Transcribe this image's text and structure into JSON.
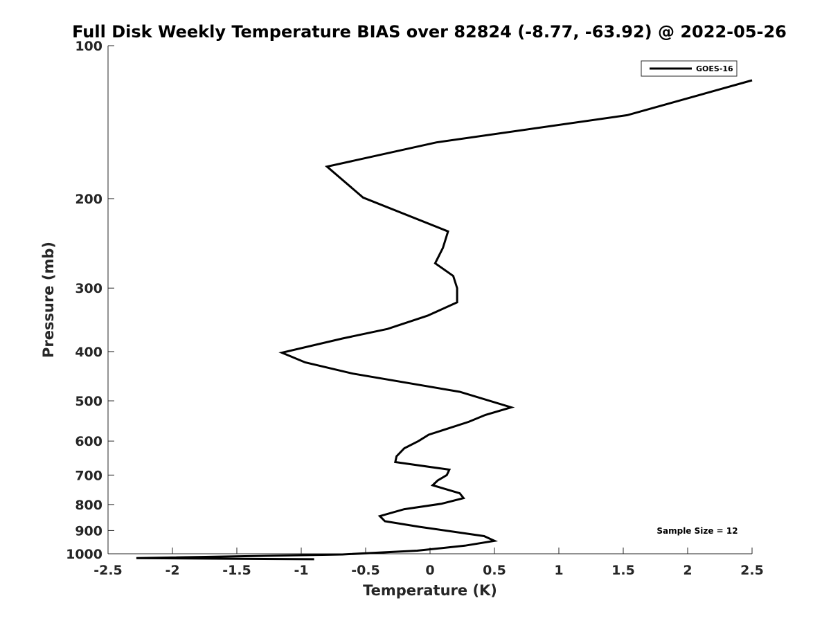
{
  "chart_data": {
    "type": "line",
    "title": "Full Disk Weekly Temperature BIAS over 82824 (-8.77, -63.92) @ 2022-05-26",
    "xlabel": "Temperature (K)",
    "ylabel": "Pressure (mb)",
    "xlim": [
      -2.5,
      2.5
    ],
    "ylim": [
      100,
      1000
    ],
    "y_scale": "log",
    "y_reversed": true,
    "x_ticks": [
      -2.5,
      -2,
      -1.5,
      -1,
      -0.5,
      0,
      0.5,
      1,
      1.5,
      2,
      2.5
    ],
    "x_tick_labels": [
      "-2.5",
      "-2",
      "-1.5",
      "-1",
      "-0.5",
      "0",
      "0.5",
      "1",
      "1.5",
      "2",
      "2.5"
    ],
    "y_ticks": [
      100,
      200,
      300,
      400,
      500,
      600,
      700,
      800,
      900,
      1000
    ],
    "y_tick_labels": [
      "100",
      "200",
      "300",
      "400",
      "500",
      "600",
      "700",
      "800",
      "900",
      "1000"
    ],
    "grid": false,
    "legend_position": "top-right",
    "annotation": "Sample Size = 12",
    "series": [
      {
        "name": "GOES-16",
        "color": "#000000",
        "points": [
          [
            2.5,
            117
          ],
          [
            1.53,
            137
          ],
          [
            0.05,
            155
          ],
          [
            -0.8,
            173
          ],
          [
            -0.52,
            199
          ],
          [
            0.14,
            232
          ],
          [
            0.1,
            250
          ],
          [
            0.04,
            268
          ],
          [
            0.18,
            284
          ],
          [
            0.21,
            300
          ],
          [
            0.21,
            320
          ],
          [
            -0.02,
            340
          ],
          [
            -0.33,
            361
          ],
          [
            -0.68,
            377
          ],
          [
            -1.15,
            402
          ],
          [
            -0.97,
            420
          ],
          [
            -0.6,
            442
          ],
          [
            0.23,
            480
          ],
          [
            0.63,
            515
          ],
          [
            0.43,
            533
          ],
          [
            0.3,
            550
          ],
          [
            -0.01,
            583
          ],
          [
            -0.09,
            600
          ],
          [
            -0.2,
            620
          ],
          [
            -0.26,
            643
          ],
          [
            -0.27,
            660
          ],
          [
            0.15,
            683
          ],
          [
            0.13,
            700
          ],
          [
            0.06,
            717
          ],
          [
            0.02,
            733
          ],
          [
            0.23,
            760
          ],
          [
            0.26,
            777
          ],
          [
            0.09,
            797
          ],
          [
            -0.2,
            817
          ],
          [
            -0.39,
            843
          ],
          [
            -0.35,
            863
          ],
          [
            -0.08,
            885
          ],
          [
            0.42,
            923
          ],
          [
            0.5,
            943
          ],
          [
            0.27,
            964
          ],
          [
            -0.1,
            986
          ],
          [
            -0.68,
            1003
          ],
          [
            -2.28,
            1020
          ],
          [
            -0.9,
            1025
          ]
        ]
      }
    ]
  }
}
